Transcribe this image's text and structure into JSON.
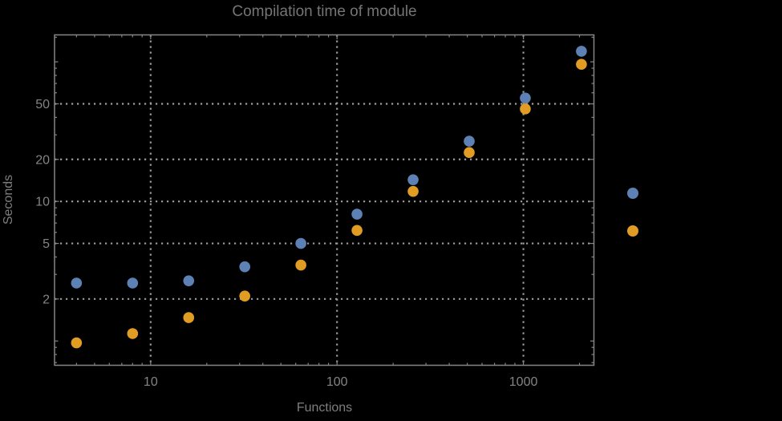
{
  "title": "Compilation time of module",
  "colors": {
    "background": "#000000",
    "frame": "#858585",
    "grid": "#9c9c9c",
    "title_text": "#757575",
    "tick_text": "#848484",
    "series1_blue": "#5e81b5",
    "series2_orange": "#e19c24"
  },
  "chart_data": {
    "type": "scatter",
    "title": "Compilation time of module",
    "xlabel": "Functions",
    "ylabel": "Seconds",
    "x_scale": "log",
    "y_scale": "log",
    "xlim": [
      3.05,
      2390
    ],
    "ylim": [
      0.67,
      156
    ],
    "grid": "dotted, at labeled major ticks only",
    "x": [
      4,
      8,
      16,
      32,
      64,
      128,
      256,
      512,
      1024,
      2048
    ],
    "series": [
      {
        "name": "series-1-blue",
        "color": "#5e81b5",
        "values": [
          2.6,
          2.6,
          2.7,
          3.4,
          5.0,
          8.1,
          14.3,
          27,
          55,
          119
        ]
      },
      {
        "name": "series-2-orange",
        "color": "#e19c24",
        "values": [
          0.97,
          1.13,
          1.47,
          2.1,
          3.5,
          6.2,
          11.8,
          22.4,
          46,
          96
        ]
      }
    ],
    "x_ticks_labeled": [
      "10",
      "100",
      "1000"
    ],
    "x_ticks_minor": [
      4,
      5,
      6,
      7,
      8,
      9,
      20,
      30,
      40,
      50,
      60,
      70,
      80,
      90,
      200,
      300,
      400,
      500,
      600,
      700,
      800,
      900,
      2000
    ],
    "y_ticks_labeled": [
      "2",
      "5",
      "10",
      "20",
      "50"
    ],
    "y_ticks_medium": [
      1,
      100
    ],
    "y_ticks_minor": [
      0.7,
      0.8,
      0.9,
      3,
      4,
      6,
      7,
      8,
      9,
      30,
      40,
      60,
      70,
      80,
      90,
      150
    ],
    "legend": {
      "position": "outside-right",
      "labels_visible": false,
      "entries": [
        {
          "name": "series-1-blue",
          "color": "#5e81b5"
        },
        {
          "name": "series-2-orange",
          "color": "#e19c24"
        }
      ]
    }
  }
}
